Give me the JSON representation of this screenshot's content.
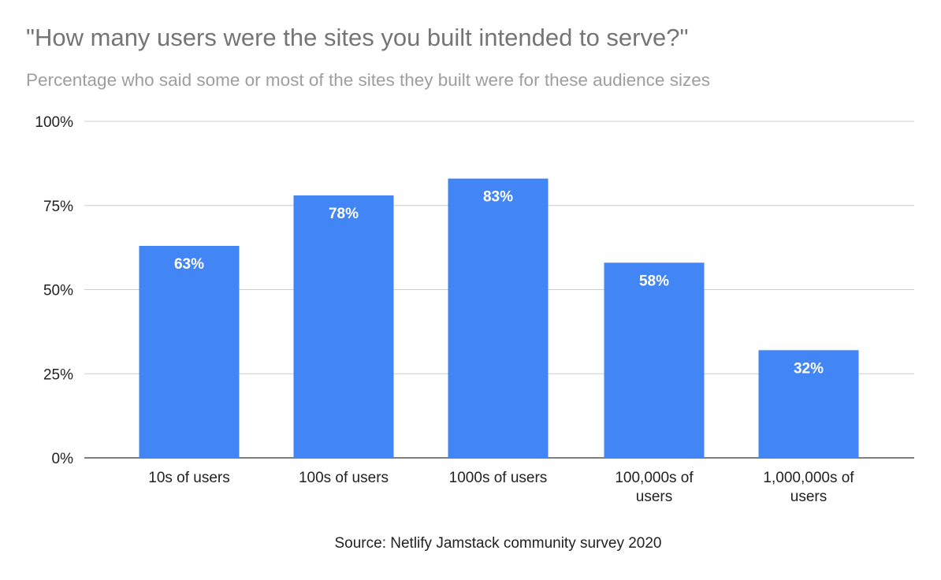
{
  "chart_data": {
    "type": "bar",
    "title": "\"How many users were the sites you built intended to serve?\"",
    "subtitle": "Percentage who said some or most of the sites they built were for these audience sizes",
    "source": "Source: Netlify Jamstack community survey 2020",
    "categories": [
      [
        "10s of users"
      ],
      [
        "100s of users"
      ],
      [
        "1000s of users"
      ],
      [
        "100,000s of",
        "users"
      ],
      [
        "1,000,000s of",
        "users"
      ]
    ],
    "values": [
      63,
      78,
      83,
      58,
      32
    ],
    "data_labels": [
      "63%",
      "78%",
      "83%",
      "58%",
      "32%"
    ],
    "ylim": [
      0,
      100
    ],
    "yticks": [
      0,
      25,
      50,
      75,
      100
    ],
    "ytick_labels": [
      "0%",
      "25%",
      "50%",
      "75%",
      "100%"
    ],
    "grid": true,
    "bar_color": "#4285f4"
  }
}
